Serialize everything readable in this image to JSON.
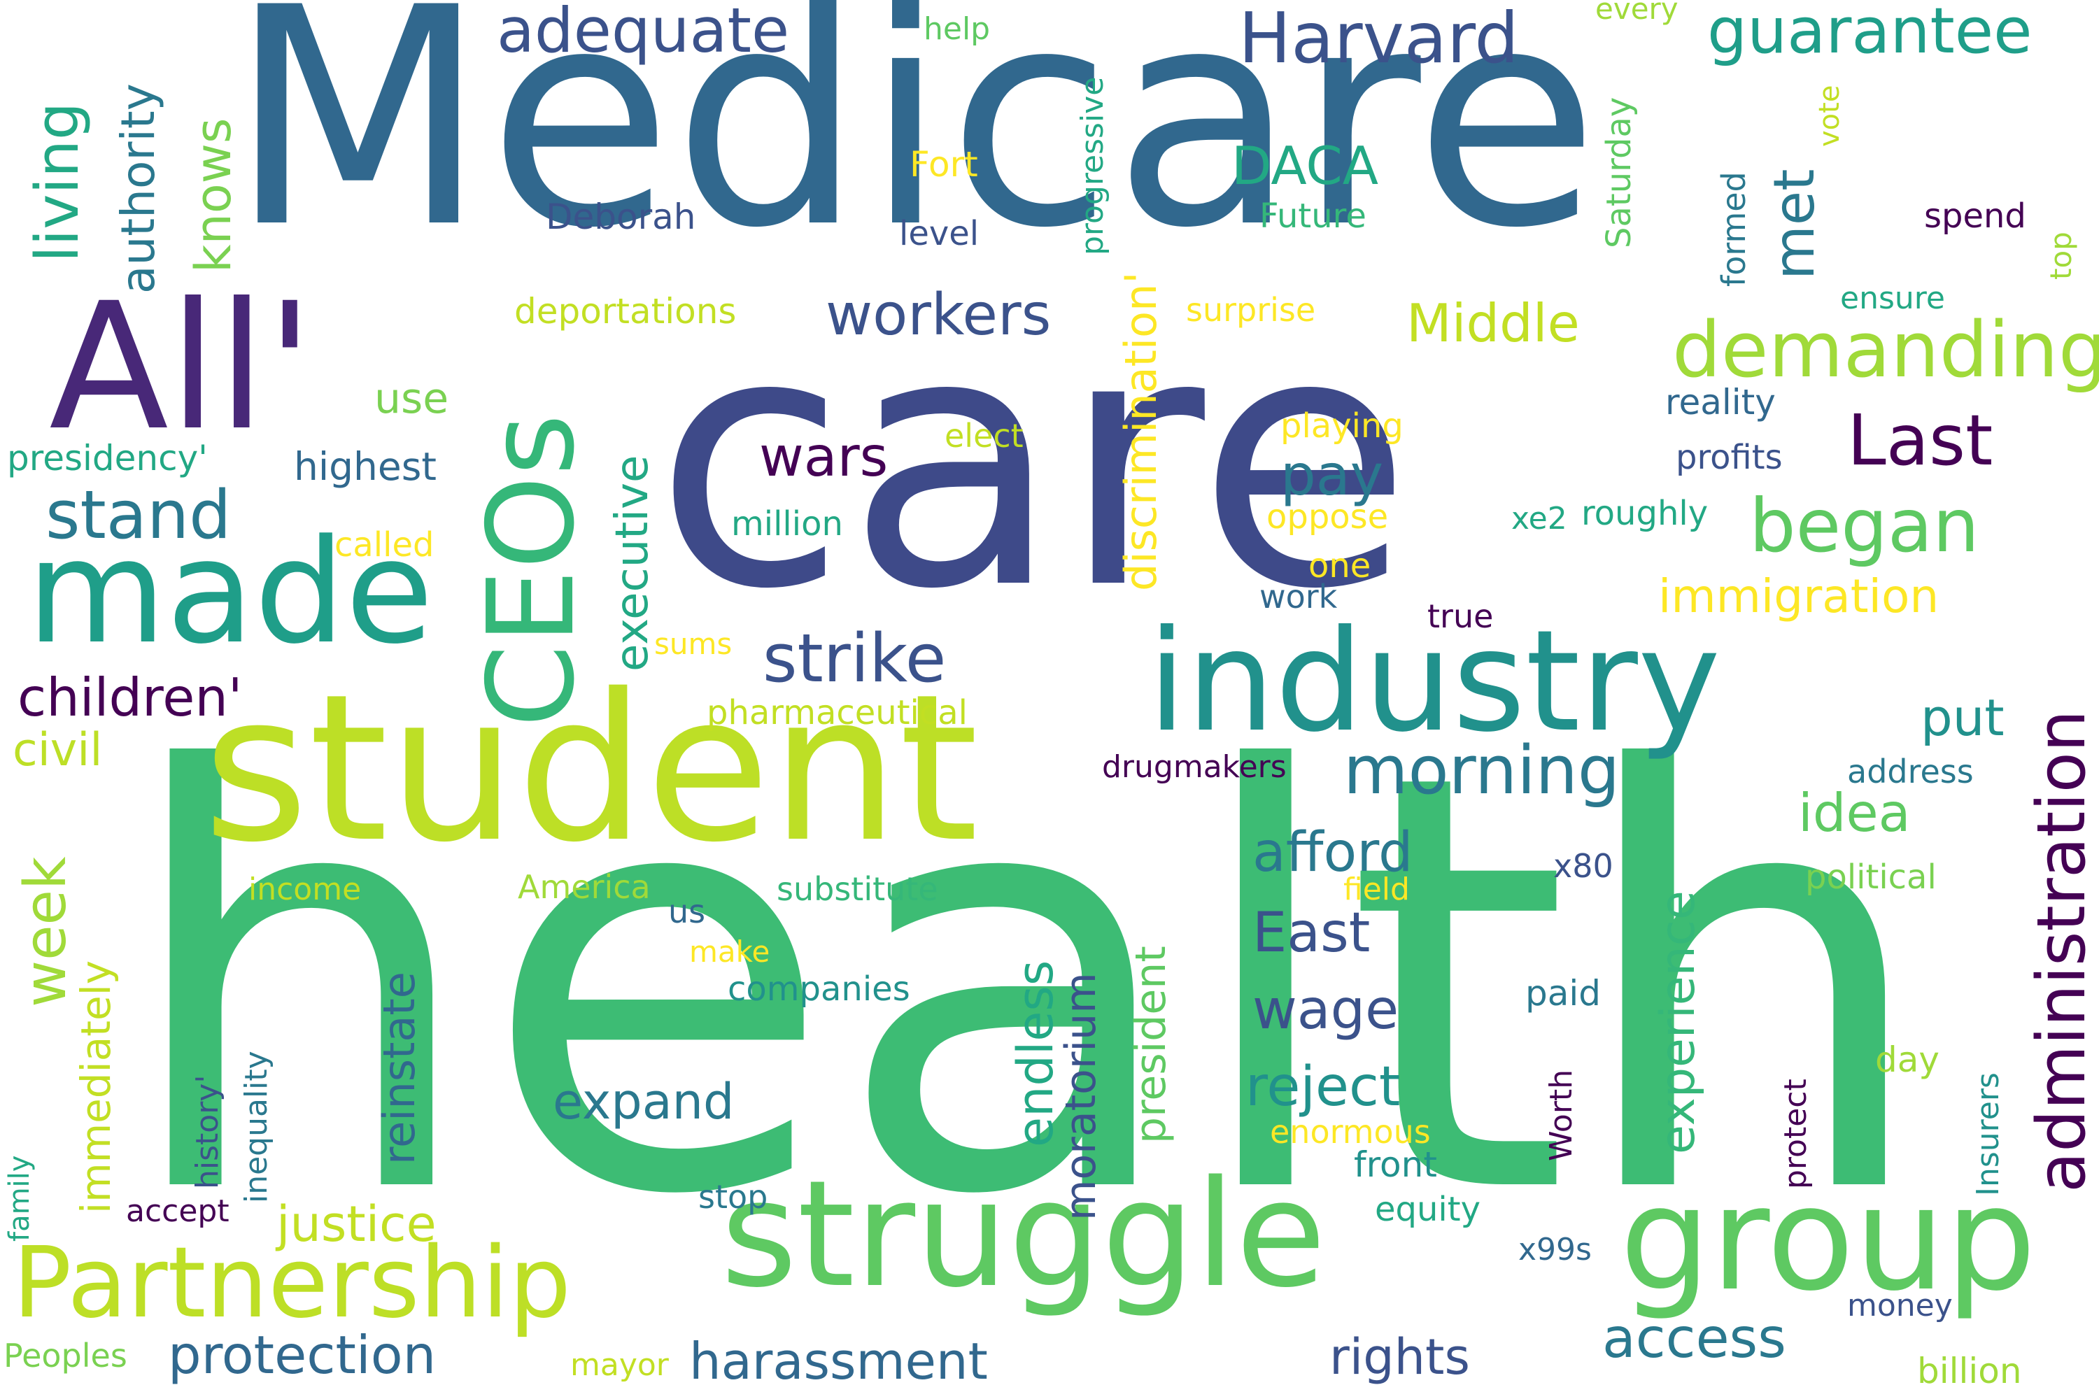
{
  "words": [
    {
      "text": "Medicare",
      "color": "#31688e"
    },
    {
      "text": "care",
      "color": "#3e4a89"
    },
    {
      "text": "health",
      "color": "#3dbc74"
    },
    {
      "text": "student",
      "color": "#bddf26"
    },
    {
      "text": "All'",
      "color": "#482878"
    },
    {
      "text": "made",
      "color": "#1f9e89"
    },
    {
      "text": "industry",
      "color": "#21918c"
    },
    {
      "text": "struggle",
      "color": "#5ec962"
    },
    {
      "text": "group",
      "color": "#5ec962"
    },
    {
      "text": "CEOs",
      "color": "#35b779"
    },
    {
      "text": "Partnership",
      "color": "#bddf26"
    },
    {
      "text": "administration",
      "color": "#440154"
    },
    {
      "text": "demanding",
      "color": "#a0da39"
    },
    {
      "text": "discrimination'",
      "color": "#fde725"
    },
    {
      "text": "Harvard",
      "color": "#3b528b"
    },
    {
      "text": "guarantee",
      "color": "#1f9e89"
    },
    {
      "text": "adequate",
      "color": "#3b528b"
    },
    {
      "text": "workers",
      "color": "#3b528b"
    },
    {
      "text": "living",
      "color": "#22a884"
    },
    {
      "text": "authority",
      "color": "#2a788e"
    },
    {
      "text": "knows",
      "color": "#7ad151"
    },
    {
      "text": "stand",
      "color": "#2a788e"
    },
    {
      "text": "morning",
      "color": "#2a788e"
    },
    {
      "text": "strike",
      "color": "#3b528b"
    },
    {
      "text": "began",
      "color": "#5ec962"
    },
    {
      "text": "Last",
      "color": "#440154"
    },
    {
      "text": "wars",
      "color": "#440154"
    },
    {
      "text": "pay",
      "color": "#2a788e"
    },
    {
      "text": "Middle",
      "color": "#c2df23"
    },
    {
      "text": "met",
      "color": "#2a788e"
    },
    {
      "text": "DACA",
      "color": "#22a884"
    },
    {
      "text": "children'",
      "color": "#440154"
    },
    {
      "text": "executive",
      "color": "#22a884"
    },
    {
      "text": "immigration",
      "color": "#fde725"
    },
    {
      "text": "afford",
      "color": "#2a788e"
    },
    {
      "text": "East",
      "color": "#3b528b"
    },
    {
      "text": "wage",
      "color": "#3b528b"
    },
    {
      "text": "reject",
      "color": "#21918c"
    },
    {
      "text": "expand",
      "color": "#2a788e"
    },
    {
      "text": "endless",
      "color": "#22a884"
    },
    {
      "text": "moratorium",
      "color": "#3b528b"
    },
    {
      "text": "president",
      "color": "#5ec962"
    },
    {
      "text": "experience",
      "color": "#35b779"
    },
    {
      "text": "idea",
      "color": "#5ec962"
    },
    {
      "text": "put",
      "color": "#21918c"
    },
    {
      "text": "access",
      "color": "#2a788e"
    },
    {
      "text": "rights",
      "color": "#3b528b"
    },
    {
      "text": "harassment",
      "color": "#31688e"
    },
    {
      "text": "protection",
      "color": "#31688e"
    },
    {
      "text": "justice",
      "color": "#c2df23"
    },
    {
      "text": "week",
      "color": "#a0da39"
    },
    {
      "text": "immediately",
      "color": "#c2df23"
    },
    {
      "text": "reinstate",
      "color": "#31688e"
    },
    {
      "text": "civil",
      "color": "#bddf26"
    },
    {
      "text": "presidency'",
      "color": "#22a884"
    },
    {
      "text": "highest",
      "color": "#31688e"
    },
    {
      "text": "use",
      "color": "#7ad151"
    },
    {
      "text": "called",
      "color": "#fde725"
    },
    {
      "text": "Deborah",
      "color": "#3b528b"
    },
    {
      "text": "Fort",
      "color": "#fde725"
    },
    {
      "text": "level",
      "color": "#3b528b"
    },
    {
      "text": "progressive",
      "color": "#22a884"
    },
    {
      "text": "deportations",
      "color": "#c2df23"
    },
    {
      "text": "surprise",
      "color": "#fde725"
    },
    {
      "text": "Future",
      "color": "#35b779"
    },
    {
      "text": "help",
      "color": "#5ec962"
    },
    {
      "text": "every",
      "color": "#a0da39"
    },
    {
      "text": "Saturday",
      "color": "#5ec962"
    },
    {
      "text": "vote",
      "color": "#c2df23"
    },
    {
      "text": "formed",
      "color": "#2a788e"
    },
    {
      "text": "spend",
      "color": "#440154"
    },
    {
      "text": "ensure",
      "color": "#22a884"
    },
    {
      "text": "top",
      "color": "#a0da39"
    },
    {
      "text": "reality",
      "color": "#31688e"
    },
    {
      "text": "profits",
      "color": "#3b528b"
    },
    {
      "text": "roughly",
      "color": "#22a884"
    },
    {
      "text": "xe2",
      "color": "#22a884"
    },
    {
      "text": "playing",
      "color": "#fde725"
    },
    {
      "text": "oppose",
      "color": "#fde725"
    },
    {
      "text": "one",
      "color": "#fde725"
    },
    {
      "text": "work",
      "color": "#31688e"
    },
    {
      "text": "true",
      "color": "#440154"
    },
    {
      "text": "elect",
      "color": "#c2df23"
    },
    {
      "text": "million",
      "color": "#22a884"
    },
    {
      "text": "sums",
      "color": "#fde725"
    },
    {
      "text": "pharmaceutical",
      "color": "#c2df23"
    },
    {
      "text": "drugmakers",
      "color": "#440154"
    },
    {
      "text": "address",
      "color": "#2a788e"
    },
    {
      "text": "political",
      "color": "#7ad151"
    },
    {
      "text": "x80",
      "color": "#3b528b"
    },
    {
      "text": "field",
      "color": "#fde725"
    },
    {
      "text": "income",
      "color": "#c2df23"
    },
    {
      "text": "America",
      "color": "#a0da39"
    },
    {
      "text": "substitute",
      "color": "#35b779"
    },
    {
      "text": "us",
      "color": "#31688e"
    },
    {
      "text": "make",
      "color": "#fde725"
    },
    {
      "text": "companies",
      "color": "#21918c"
    },
    {
      "text": "paid",
      "color": "#2a788e"
    },
    {
      "text": "Worth",
      "color": "#440154"
    },
    {
      "text": "protect",
      "color": "#440154"
    },
    {
      "text": "Insurers",
      "color": "#21918c"
    },
    {
      "text": "day",
      "color": "#a0da39"
    },
    {
      "text": "enormous",
      "color": "#fde725"
    },
    {
      "text": "front",
      "color": "#21918c"
    },
    {
      "text": "equity",
      "color": "#22a884"
    },
    {
      "text": "stop",
      "color": "#2a788e"
    },
    {
      "text": "x99s",
      "color": "#31688e"
    },
    {
      "text": "money",
      "color": "#3b528b"
    },
    {
      "text": "billion",
      "color": "#a0da39"
    },
    {
      "text": "mayor",
      "color": "#c2df23"
    },
    {
      "text": "Peoples",
      "color": "#7ad151"
    },
    {
      "text": "accept",
      "color": "#440154"
    },
    {
      "text": "family",
      "color": "#22a884"
    },
    {
      "text": "history'",
      "color": "#3b528b"
    },
    {
      "text": "inequality",
      "color": "#2a788e"
    }
  ]
}
